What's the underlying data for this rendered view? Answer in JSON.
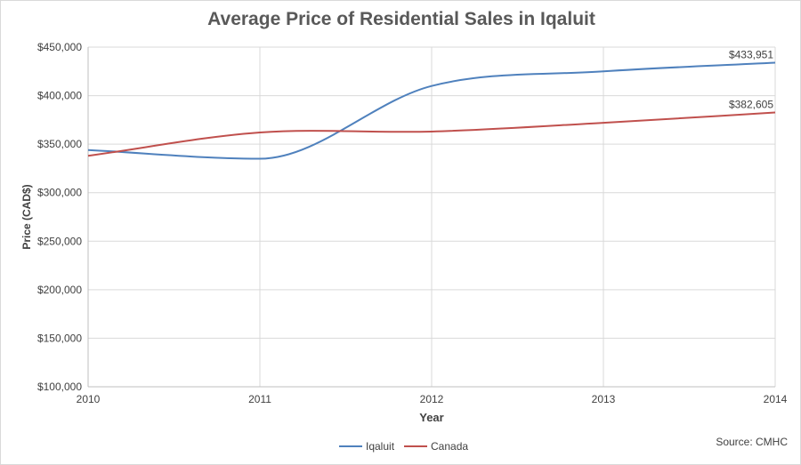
{
  "chart_data": {
    "type": "line",
    "title": "Average Price of Residential Sales in Iqaluit",
    "xlabel": "Year",
    "ylabel": "Price (CAD$)",
    "x": [
      2010,
      2011,
      2012,
      2013,
      2014
    ],
    "xlim": [
      2010,
      2014
    ],
    "ylim": [
      100000,
      450000
    ],
    "y_ticks": [
      100000,
      150000,
      200000,
      250000,
      300000,
      350000,
      400000,
      450000
    ],
    "y_tick_labels": [
      "$100,000",
      "$150,000",
      "$200,000",
      "$250,000",
      "$300,000",
      "$350,000",
      "$400,000",
      "$450,000"
    ],
    "x_tick_labels": [
      "2010",
      "2011",
      "2012",
      "2013",
      "2014"
    ],
    "grid": true,
    "legend_position": "bottom",
    "series": [
      {
        "name": "Iqaluit",
        "color": "#4f81bd",
        "values": [
          344000,
          335000,
          410000,
          425000,
          433951
        ]
      },
      {
        "name": "Canada",
        "color": "#c0504d",
        "values": [
          338000,
          362000,
          363000,
          372000,
          382605
        ]
      }
    ],
    "annotations": [
      "$433,951",
      "$382,605"
    ],
    "source": "Source: CMHC"
  }
}
